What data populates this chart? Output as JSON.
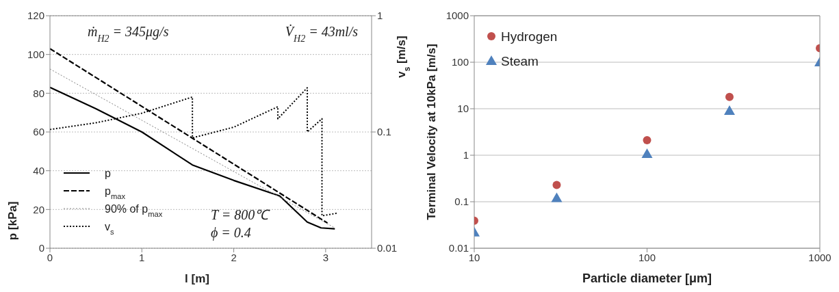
{
  "chart_data": [
    {
      "type": "line",
      "xlabel": "l [m]",
      "ylabel": "p [kPa]",
      "y2label": "v$_{s}$ [m/s]",
      "xlim": [
        0,
        3.5
      ],
      "xticks": [
        0,
        1,
        2,
        3
      ],
      "ylim": [
        0,
        120
      ],
      "yticks": [
        0,
        20,
        40,
        60,
        80,
        100,
        120
      ],
      "y2lim": [
        0.01,
        1
      ],
      "y2ticks": [
        0.01,
        0.1,
        1
      ],
      "log": "y2",
      "grid": "y",
      "legend": "bottom left",
      "marker": "none",
      "annotations": [
        "ṁ$_{H2}$ = 345μg/s",
        "V̇$_{H2}$ = 43ml/s",
        "T = 800℃",
        "ϕ = 0.4"
      ],
      "series": [
        {
          "name": "p",
          "color": "#000000",
          "line_style": "solid",
          "x": [
            0,
            0.5,
            1,
            1.55,
            2,
            2.5,
            2.8,
            2.95,
            3.1
          ],
          "values": [
            83,
            72,
            60,
            43,
            35,
            27,
            13.5,
            10.5,
            10
          ]
        },
        {
          "name": "p$_{max}$",
          "color": "#000000",
          "line_style": "dashed",
          "x": [
            0,
            3.02
          ],
          "values": [
            103,
            13
          ]
        },
        {
          "name": "90% of p$_{max}$",
          "color": "#808080",
          "line_style": "dotted",
          "x": [
            0,
            3.1
          ],
          "values": [
            92.5,
            10.5
          ]
        },
        {
          "name": "v$_{s}$",
          "color": "#000000",
          "line_style": "dotted",
          "axis": "y2",
          "x": [
            0,
            0.5,
            1,
            1.55,
            1.55,
            2,
            2.48,
            2.48,
            2.8,
            2.8,
            2.96,
            2.96,
            3.12
          ],
          "values": [
            0.105,
            0.12,
            0.145,
            0.2,
            0.089,
            0.11,
            0.165,
            0.13,
            0.24,
            0.1,
            0.13,
            0.019,
            0.02
          ]
        }
      ]
    },
    {
      "type": "scatter",
      "xlabel": "Particle diameter [μm]",
      "ylabel": "Terminal Velocity at 10kPa [m/s]",
      "xlim": [
        10,
        1000
      ],
      "xticks": [
        10,
        100,
        1000
      ],
      "ylim": [
        0.01,
        1000
      ],
      "yticks": [
        0.01,
        0.1,
        1,
        10,
        100,
        1000
      ],
      "log": "xy",
      "grid": "y",
      "legend": "top left",
      "x": [
        10,
        30,
        100,
        300,
        1000
      ],
      "series": [
        {
          "name": "Hydrogen",
          "color": "#c0504d",
          "marker": "circle",
          "values": [
            0.039,
            0.23,
            2.1,
            18,
            200
          ]
        },
        {
          "name": "Steam",
          "color": "#4f81bd",
          "marker": "triangle",
          "values": [
            0.022,
            0.12,
            1.07,
            9,
            100
          ]
        }
      ]
    }
  ]
}
